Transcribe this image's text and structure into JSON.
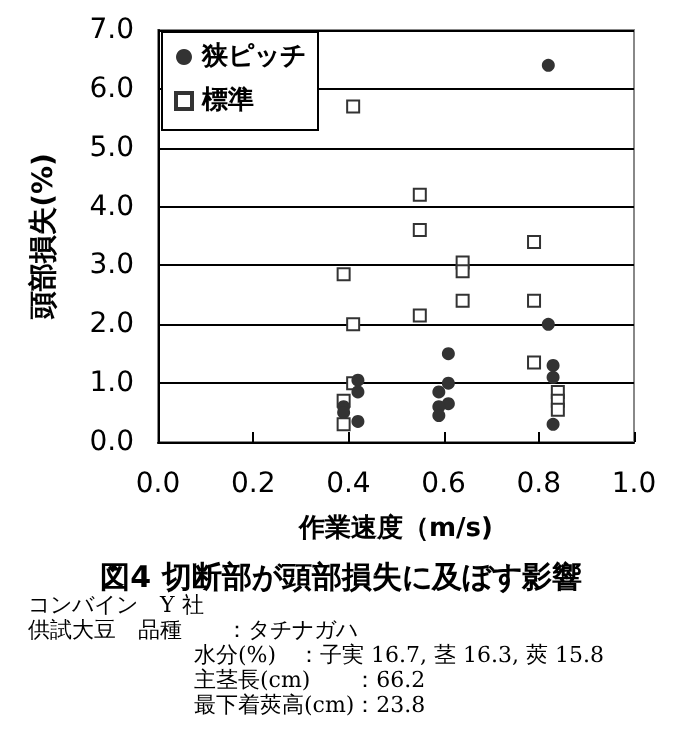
{
  "chart_data": {
    "type": "scatter",
    "title": "図4 切断部が頭部損失に及ぼす影響",
    "xlabel": "作業速度（m/s)",
    "ylabel": "頭部損失(%)",
    "series": [
      {
        "name": "狭ピッチ",
        "color": "#333333",
        "marker": "circle",
        "x": [
          0.82,
          0.82,
          0.83,
          0.83,
          0.83,
          0.61,
          0.61,
          0.59,
          0.61,
          0.59,
          0.59,
          0.42,
          0.42,
          0.39,
          0.39,
          0.42
        ],
        "values": [
          6.4,
          2.0,
          1.3,
          1.1,
          0.3,
          1.5,
          1.0,
          0.85,
          0.65,
          0.6,
          0.45,
          1.05,
          0.85,
          0.6,
          0.5,
          0.35
        ]
      },
      {
        "name": "標準",
        "color": "#333333",
        "marker": "square",
        "x": [
          0.41,
          0.39,
          0.41,
          0.41,
          0.39,
          0.39,
          0.55,
          0.55,
          0.55,
          0.64,
          0.64,
          0.64,
          0.79,
          0.79,
          0.79,
          0.84,
          0.84,
          0.84
        ],
        "values": [
          5.7,
          2.85,
          2.0,
          1.0,
          0.7,
          0.3,
          4.2,
          3.6,
          2.15,
          3.05,
          2.9,
          2.4,
          3.4,
          2.4,
          1.35,
          0.85,
          0.7,
          0.55
        ]
      }
    ],
    "xlim": [
      0,
      1
    ],
    "xticks": [
      {
        "value": 0,
        "label": "0.0"
      },
      {
        "value": 0.2,
        "label": "0.2"
      },
      {
        "value": 0.4,
        "label": "0.4"
      },
      {
        "value": 0.6,
        "label": "0.6"
      },
      {
        "value": 0.8,
        "label": "0.8"
      },
      {
        "value": 1,
        "label": "1.0"
      }
    ],
    "ylim": [
      0,
      7
    ],
    "yticks": [
      {
        "value": 0,
        "label": "0.0"
      },
      {
        "value": 1,
        "label": "1.0"
      },
      {
        "value": 2,
        "label": "2.0"
      },
      {
        "value": 3,
        "label": "3.0"
      },
      {
        "value": 4,
        "label": "4.0"
      },
      {
        "value": 5,
        "label": "5.0"
      },
      {
        "value": 6,
        "label": "6.0"
      },
      {
        "value": 7,
        "label": "7.0"
      }
    ],
    "grid": "y",
    "legend": "top left",
    "annotations": [
      "コンバイン　Y 社",
      "供試大豆　品種　　：タチナガハ",
      "水分(%)　：子実 16.7, 茎 16.3, 莢 15.8",
      "主茎長(cm)　　：66.2",
      "最下着莢高(cm)：23.8"
    ]
  }
}
